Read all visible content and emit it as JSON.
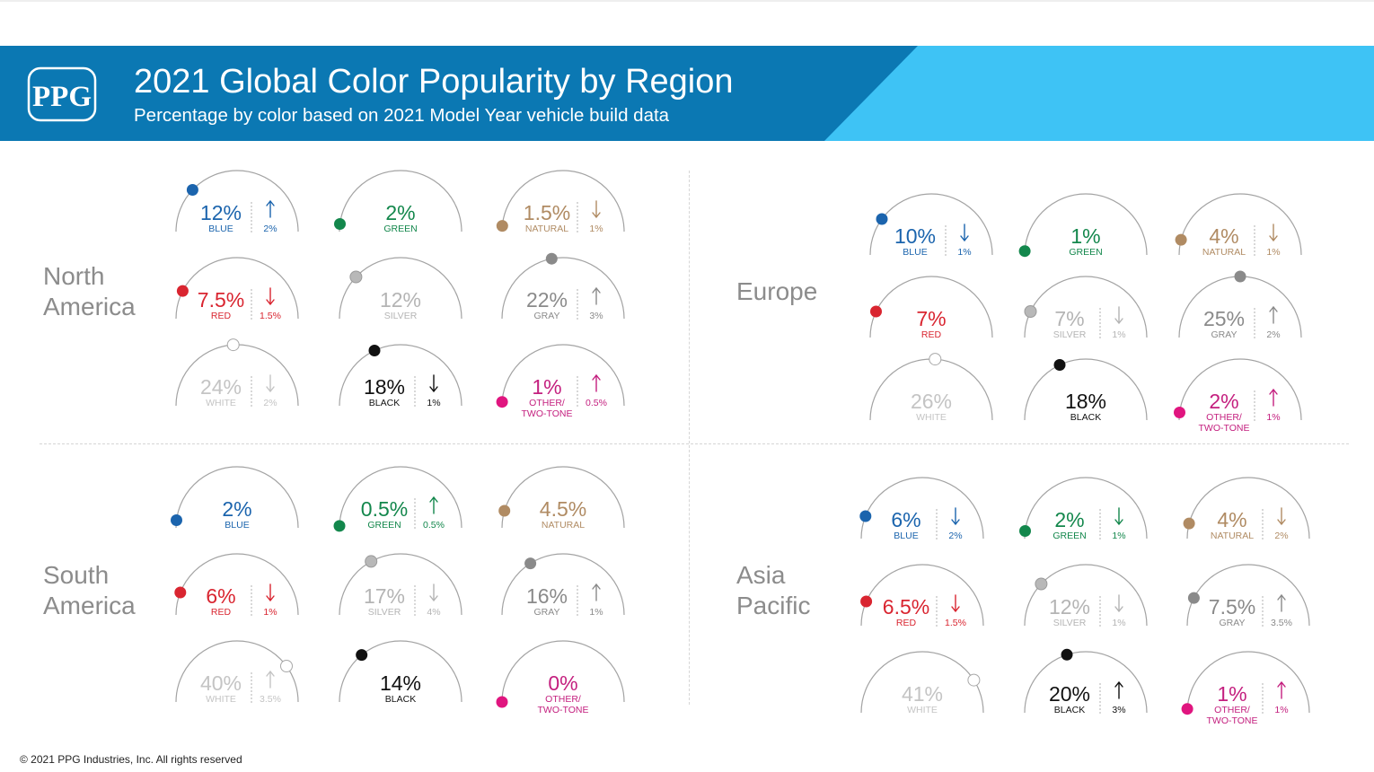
{
  "header": {
    "logo_text": "PPG",
    "title": "2021 Global Color Popularity by Region",
    "subtitle": "Percentage by color based on 2021 Model Year vehicle build data"
  },
  "footer": {
    "copyright": "© 2021 PPG Industries, Inc. All rights reserved"
  },
  "colors": {
    "banner_dark": "#0b78b3",
    "banner_light": "#3ec3f5",
    "arc": "#a3a3a3",
    "region_text": "#8c8c8c",
    "BLUE": "#1b64ad",
    "GREEN": "#13874c",
    "NATURAL": "#b08b63",
    "RED": "#d92530",
    "SILVER": "#b4b4b4",
    "GRAY": "#8a8a8a",
    "WHITE": "#c4c4c4",
    "BLACK": "#111111",
    "OTHER": "#c4207f",
    "dot_WHITE": "#ffffff",
    "dot_OTHER": "#e0157f",
    "dot_SILVER": "#b8b8b8"
  },
  "chart_data": {
    "type": "gauge-grid",
    "title": "2021 Global Color Popularity by Region",
    "subtitle": "Percentage by color based on 2021 Model Year vehicle build data",
    "unit": "%",
    "regions": [
      {
        "name": "North\nAmerica",
        "colors": [
          {
            "color": "BLUE",
            "share": 12,
            "value": "12%",
            "label": "BLUE",
            "change": "2%",
            "direction": "up"
          },
          {
            "color": "GREEN",
            "share": 2,
            "value": "2%",
            "label": "GREEN",
            "change": null,
            "direction": null
          },
          {
            "color": "NATURAL",
            "share": 1.5,
            "value": "1.5%",
            "label": "NATURAL",
            "change": "1%",
            "direction": "down"
          },
          {
            "color": "RED",
            "share": 7.5,
            "value": "7.5%",
            "label": "RED",
            "change": "1.5%",
            "direction": "down"
          },
          {
            "color": "SILVER",
            "share": 12,
            "value": "12%",
            "label": "SILVER",
            "change": null,
            "direction": null
          },
          {
            "color": "GRAY",
            "share": 22,
            "value": "22%",
            "label": "GRAY",
            "change": "3%",
            "direction": "up"
          },
          {
            "color": "WHITE",
            "share": 24,
            "value": "24%",
            "label": "WHITE",
            "change": "2%",
            "direction": "down"
          },
          {
            "color": "BLACK",
            "share": 18,
            "value": "18%",
            "label": "BLACK",
            "change": "1%",
            "direction": "down"
          },
          {
            "color": "OTHER",
            "share": 1,
            "value": "1%",
            "label": "OTHER/\nTWO-TONE",
            "change": "0.5%",
            "direction": "up"
          }
        ]
      },
      {
        "name": "Europe",
        "colors": [
          {
            "color": "BLUE",
            "share": 10,
            "value": "10%",
            "label": "BLUE",
            "change": "1%",
            "direction": "down"
          },
          {
            "color": "GREEN",
            "share": 1,
            "value": "1%",
            "label": "GREEN",
            "change": null,
            "direction": null
          },
          {
            "color": "NATURAL",
            "share": 4,
            "value": "4%",
            "label": "NATURAL",
            "change": "1%",
            "direction": "down"
          },
          {
            "color": "RED",
            "share": 7,
            "value": "7%",
            "label": "RED",
            "change": null,
            "direction": null
          },
          {
            "color": "SILVER",
            "share": 7,
            "value": "7%",
            "label": "SILVER",
            "change": "1%",
            "direction": "down"
          },
          {
            "color": "GRAY",
            "share": 25,
            "value": "25%",
            "label": "GRAY",
            "change": "2%",
            "direction": "up"
          },
          {
            "color": "WHITE",
            "share": 26,
            "value": "26%",
            "label": "WHITE",
            "change": null,
            "direction": null
          },
          {
            "color": "BLACK",
            "share": 18,
            "value": "18%",
            "label": "BLACK",
            "change": null,
            "direction": null
          },
          {
            "color": "OTHER",
            "share": 2,
            "value": "2%",
            "label": "OTHER/\nTWO-TONE",
            "change": "1%",
            "direction": "up"
          }
        ]
      },
      {
        "name": "South\nAmerica",
        "colors": [
          {
            "color": "BLUE",
            "share": 2,
            "value": "2%",
            "label": "BLUE",
            "change": null,
            "direction": null
          },
          {
            "color": "GREEN",
            "share": 0.5,
            "value": "0.5%",
            "label": "GREEN",
            "change": "0.5%",
            "direction": "up"
          },
          {
            "color": "NATURAL",
            "share": 4.5,
            "value": "4.5%",
            "label": "NATURAL",
            "change": null,
            "direction": null
          },
          {
            "color": "RED",
            "share": 6,
            "value": "6%",
            "label": "RED",
            "change": "1%",
            "direction": "down"
          },
          {
            "color": "SILVER",
            "share": 17,
            "value": "17%",
            "label": "SILVER",
            "change": "4%",
            "direction": "down"
          },
          {
            "color": "GRAY",
            "share": 16,
            "value": "16%",
            "label": "GRAY",
            "change": "1%",
            "direction": "up"
          },
          {
            "color": "WHITE",
            "share": 40,
            "value": "40%",
            "label": "WHITE",
            "change": "3.5%",
            "direction": "up"
          },
          {
            "color": "BLACK",
            "share": 14,
            "value": "14%",
            "label": "BLACK",
            "change": null,
            "direction": null
          },
          {
            "color": "OTHER",
            "share": 0,
            "value": "0%",
            "label": "OTHER/\nTWO-TONE",
            "change": null,
            "direction": null
          }
        ]
      },
      {
        "name": "Asia\nPacific",
        "colors": [
          {
            "color": "BLUE",
            "share": 6,
            "value": "6%",
            "label": "BLUE",
            "change": "2%",
            "direction": "down"
          },
          {
            "color": "GREEN",
            "share": 2,
            "value": "2%",
            "label": "GREEN",
            "change": "1%",
            "direction": "down"
          },
          {
            "color": "NATURAL",
            "share": 4,
            "value": "4%",
            "label": "NATURAL",
            "change": "2%",
            "direction": "down"
          },
          {
            "color": "RED",
            "share": 6.5,
            "value": "6.5%",
            "label": "RED",
            "change": "1.5%",
            "direction": "down"
          },
          {
            "color": "SILVER",
            "share": 12,
            "value": "12%",
            "label": "SILVER",
            "change": "1%",
            "direction": "down"
          },
          {
            "color": "GRAY",
            "share": 7.5,
            "value": "7.5%",
            "label": "GRAY",
            "change": "3.5%",
            "direction": "up"
          },
          {
            "color": "WHITE",
            "share": 41,
            "value": "41%",
            "label": "WHITE",
            "change": null,
            "direction": null
          },
          {
            "color": "BLACK",
            "share": 20,
            "value": "20%",
            "label": "BLACK",
            "change": "3%",
            "direction": "up"
          },
          {
            "color": "OTHER",
            "share": 1,
            "value": "1%",
            "label": "OTHER/\nTWO-TONE",
            "change": "1%",
            "direction": "up"
          }
        ]
      }
    ]
  }
}
